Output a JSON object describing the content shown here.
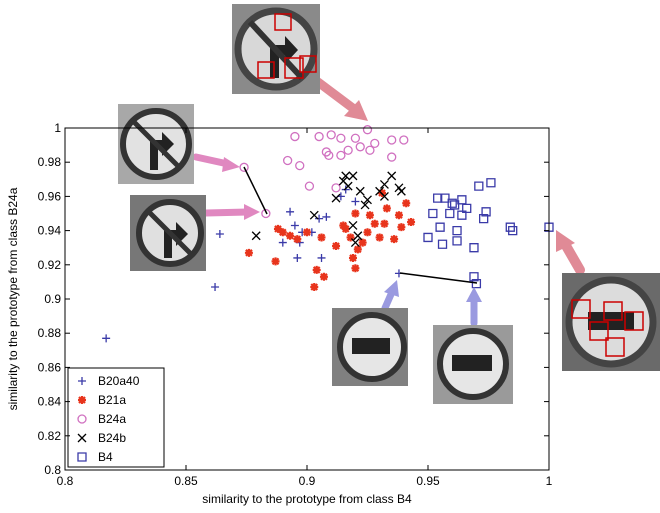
{
  "chart_data": {
    "type": "scatter",
    "xlabel": "similarity to the prototype from class B4",
    "ylabel": "similarity to the prototype from class B24a",
    "xlim": [
      0.8,
      1
    ],
    "xticks": [
      0.8,
      0.85,
      0.9,
      0.95,
      1
    ],
    "ylim": [
      0.8,
      1
    ],
    "yticks": [
      0.8,
      0.82,
      0.84,
      0.86,
      0.88,
      0.9,
      0.92,
      0.94,
      0.96,
      0.98,
      1
    ],
    "legend": "lower left",
    "series": [
      {
        "name": "B20a40",
        "color": "#3a3aa8",
        "marker": "plus",
        "x": [
          0.817,
          0.862,
          0.864,
          0.893,
          0.897,
          0.895,
          0.905,
          0.908,
          0.914,
          0.916,
          0.92,
          0.896,
          0.906,
          0.89,
          0.898,
          0.902,
          0.938
        ],
        "values": [
          0.877,
          0.907,
          0.938,
          0.951,
          0.933,
          0.943,
          0.947,
          0.948,
          0.96,
          0.964,
          0.957,
          0.924,
          0.924,
          0.933,
          0.939,
          0.939,
          0.915
        ]
      },
      {
        "name": "B21a",
        "color": "#e8341c",
        "marker": "star",
        "x": [
          0.876,
          0.887,
          0.89,
          0.893,
          0.888,
          0.896,
          0.9,
          0.906,
          0.904,
          0.903,
          0.907,
          0.912,
          0.915,
          0.918,
          0.919,
          0.921,
          0.923,
          0.925,
          0.926,
          0.928,
          0.93,
          0.932,
          0.933,
          0.936,
          0.938,
          0.939,
          0.941,
          0.943,
          0.931,
          0.92,
          0.916,
          0.92
        ],
        "values": [
          0.927,
          0.922,
          0.939,
          0.937,
          0.941,
          0.935,
          0.939,
          0.936,
          0.917,
          0.907,
          0.913,
          0.931,
          0.943,
          0.936,
          0.924,
          0.929,
          0.933,
          0.939,
          0.949,
          0.944,
          0.936,
          0.944,
          0.953,
          0.935,
          0.949,
          0.942,
          0.956,
          0.945,
          0.962,
          0.918,
          0.941,
          0.95
        ]
      },
      {
        "name": "B24a",
        "color": "#d070c0",
        "marker": "circle",
        "x": [
          0.874,
          0.883,
          0.895,
          0.905,
          0.91,
          0.914,
          0.92,
          0.925,
          0.928,
          0.935,
          0.94,
          0.892,
          0.897,
          0.908,
          0.909,
          0.914,
          0.917,
          0.922,
          0.926,
          0.935,
          0.901,
          0.912
        ],
        "values": [
          0.977,
          0.95,
          0.995,
          0.995,
          0.996,
          0.994,
          0.994,
          0.999,
          0.991,
          0.993,
          0.993,
          0.981,
          0.978,
          0.986,
          0.984,
          0.984,
          0.987,
          0.989,
          0.987,
          0.983,
          0.966,
          0.965
        ]
      },
      {
        "name": "B24b",
        "color": "#000000",
        "marker": "x",
        "x": [
          0.879,
          0.903,
          0.912,
          0.915,
          0.916,
          0.919,
          0.917,
          0.922,
          0.925,
          0.93,
          0.932,
          0.935,
          0.938,
          0.939,
          0.924,
          0.919,
          0.921,
          0.92,
          0.932
        ],
        "values": [
          0.937,
          0.949,
          0.959,
          0.969,
          0.972,
          0.972,
          0.966,
          0.963,
          0.958,
          0.963,
          0.967,
          0.972,
          0.965,
          0.963,
          0.955,
          0.943,
          0.937,
          0.933,
          0.96
        ]
      },
      {
        "name": "B4",
        "color": "#3a3aa8",
        "marker": "square",
        "x": [
          0.952,
          0.954,
          0.957,
          0.96,
          0.961,
          0.964,
          0.966,
          0.971,
          0.976,
          0.974,
          0.973,
          0.964,
          0.962,
          0.955,
          0.95,
          0.956,
          0.962,
          0.969,
          0.984,
          0.985,
          1.0,
          0.969,
          0.97,
          0.959
        ],
        "values": [
          0.95,
          0.959,
          0.959,
          0.956,
          0.955,
          0.958,
          0.953,
          0.966,
          0.968,
          0.951,
          0.947,
          0.949,
          0.94,
          0.942,
          0.936,
          0.932,
          0.934,
          0.93,
          0.942,
          0.94,
          0.942,
          0.913,
          0.909,
          0.95
        ]
      }
    ]
  }
}
